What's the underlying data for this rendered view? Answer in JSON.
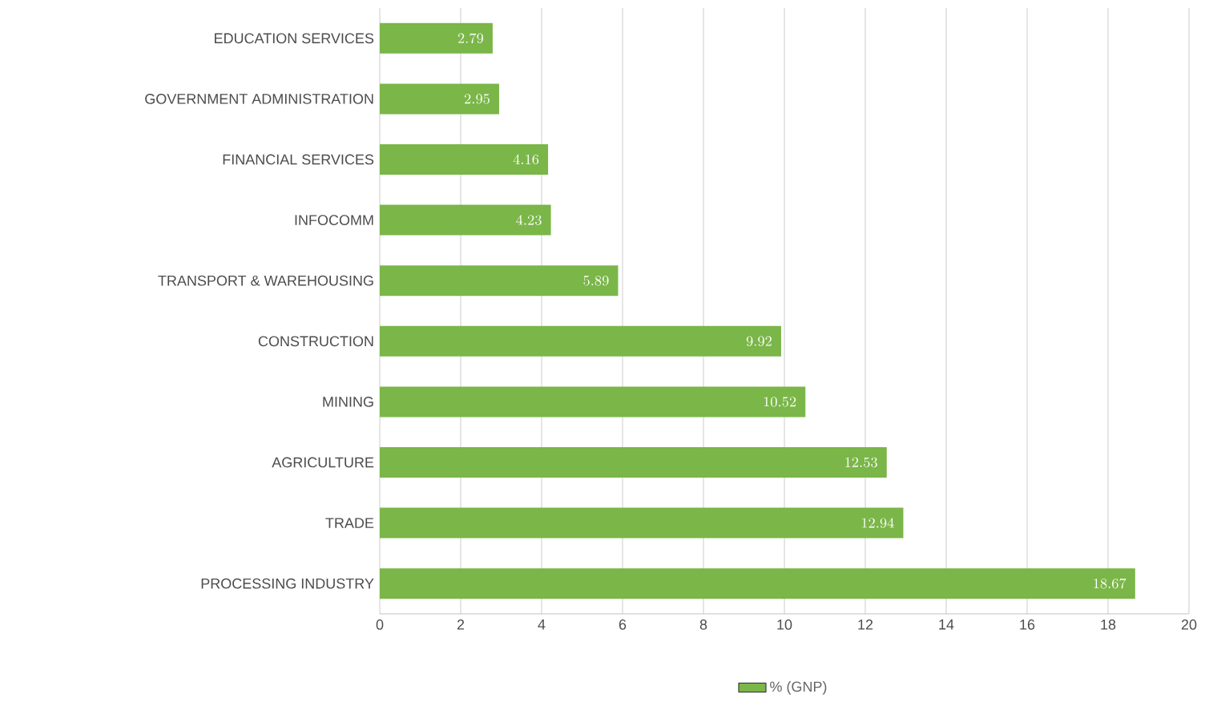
{
  "chart_data": {
    "type": "bar",
    "orientation": "horizontal",
    "categories": [
      "EDUCATION SERVICES",
      "GOVERNMENT ADMINISTRATION",
      "FINANCIAL SERVICES",
      "INFOCOMM",
      "TRANSPORT & WAREHOUSING",
      "CONSTRUCTION",
      "MINING",
      "AGRICULTURE",
      "TRADE",
      "PROCESSING INDUSTRY"
    ],
    "series": [
      {
        "name": "% (GNP)",
        "color": "#7ab648",
        "values": [
          2.79,
          2.95,
          4.16,
          4.23,
          5.89,
          9.92,
          10.52,
          12.53,
          12.94,
          18.67
        ]
      }
    ],
    "xlim": [
      0,
      20
    ],
    "xticks": [
      0,
      2,
      4,
      6,
      8,
      10,
      12,
      14,
      16,
      18,
      20
    ],
    "grid": "x",
    "data_labels": true,
    "legend": "bottom"
  }
}
